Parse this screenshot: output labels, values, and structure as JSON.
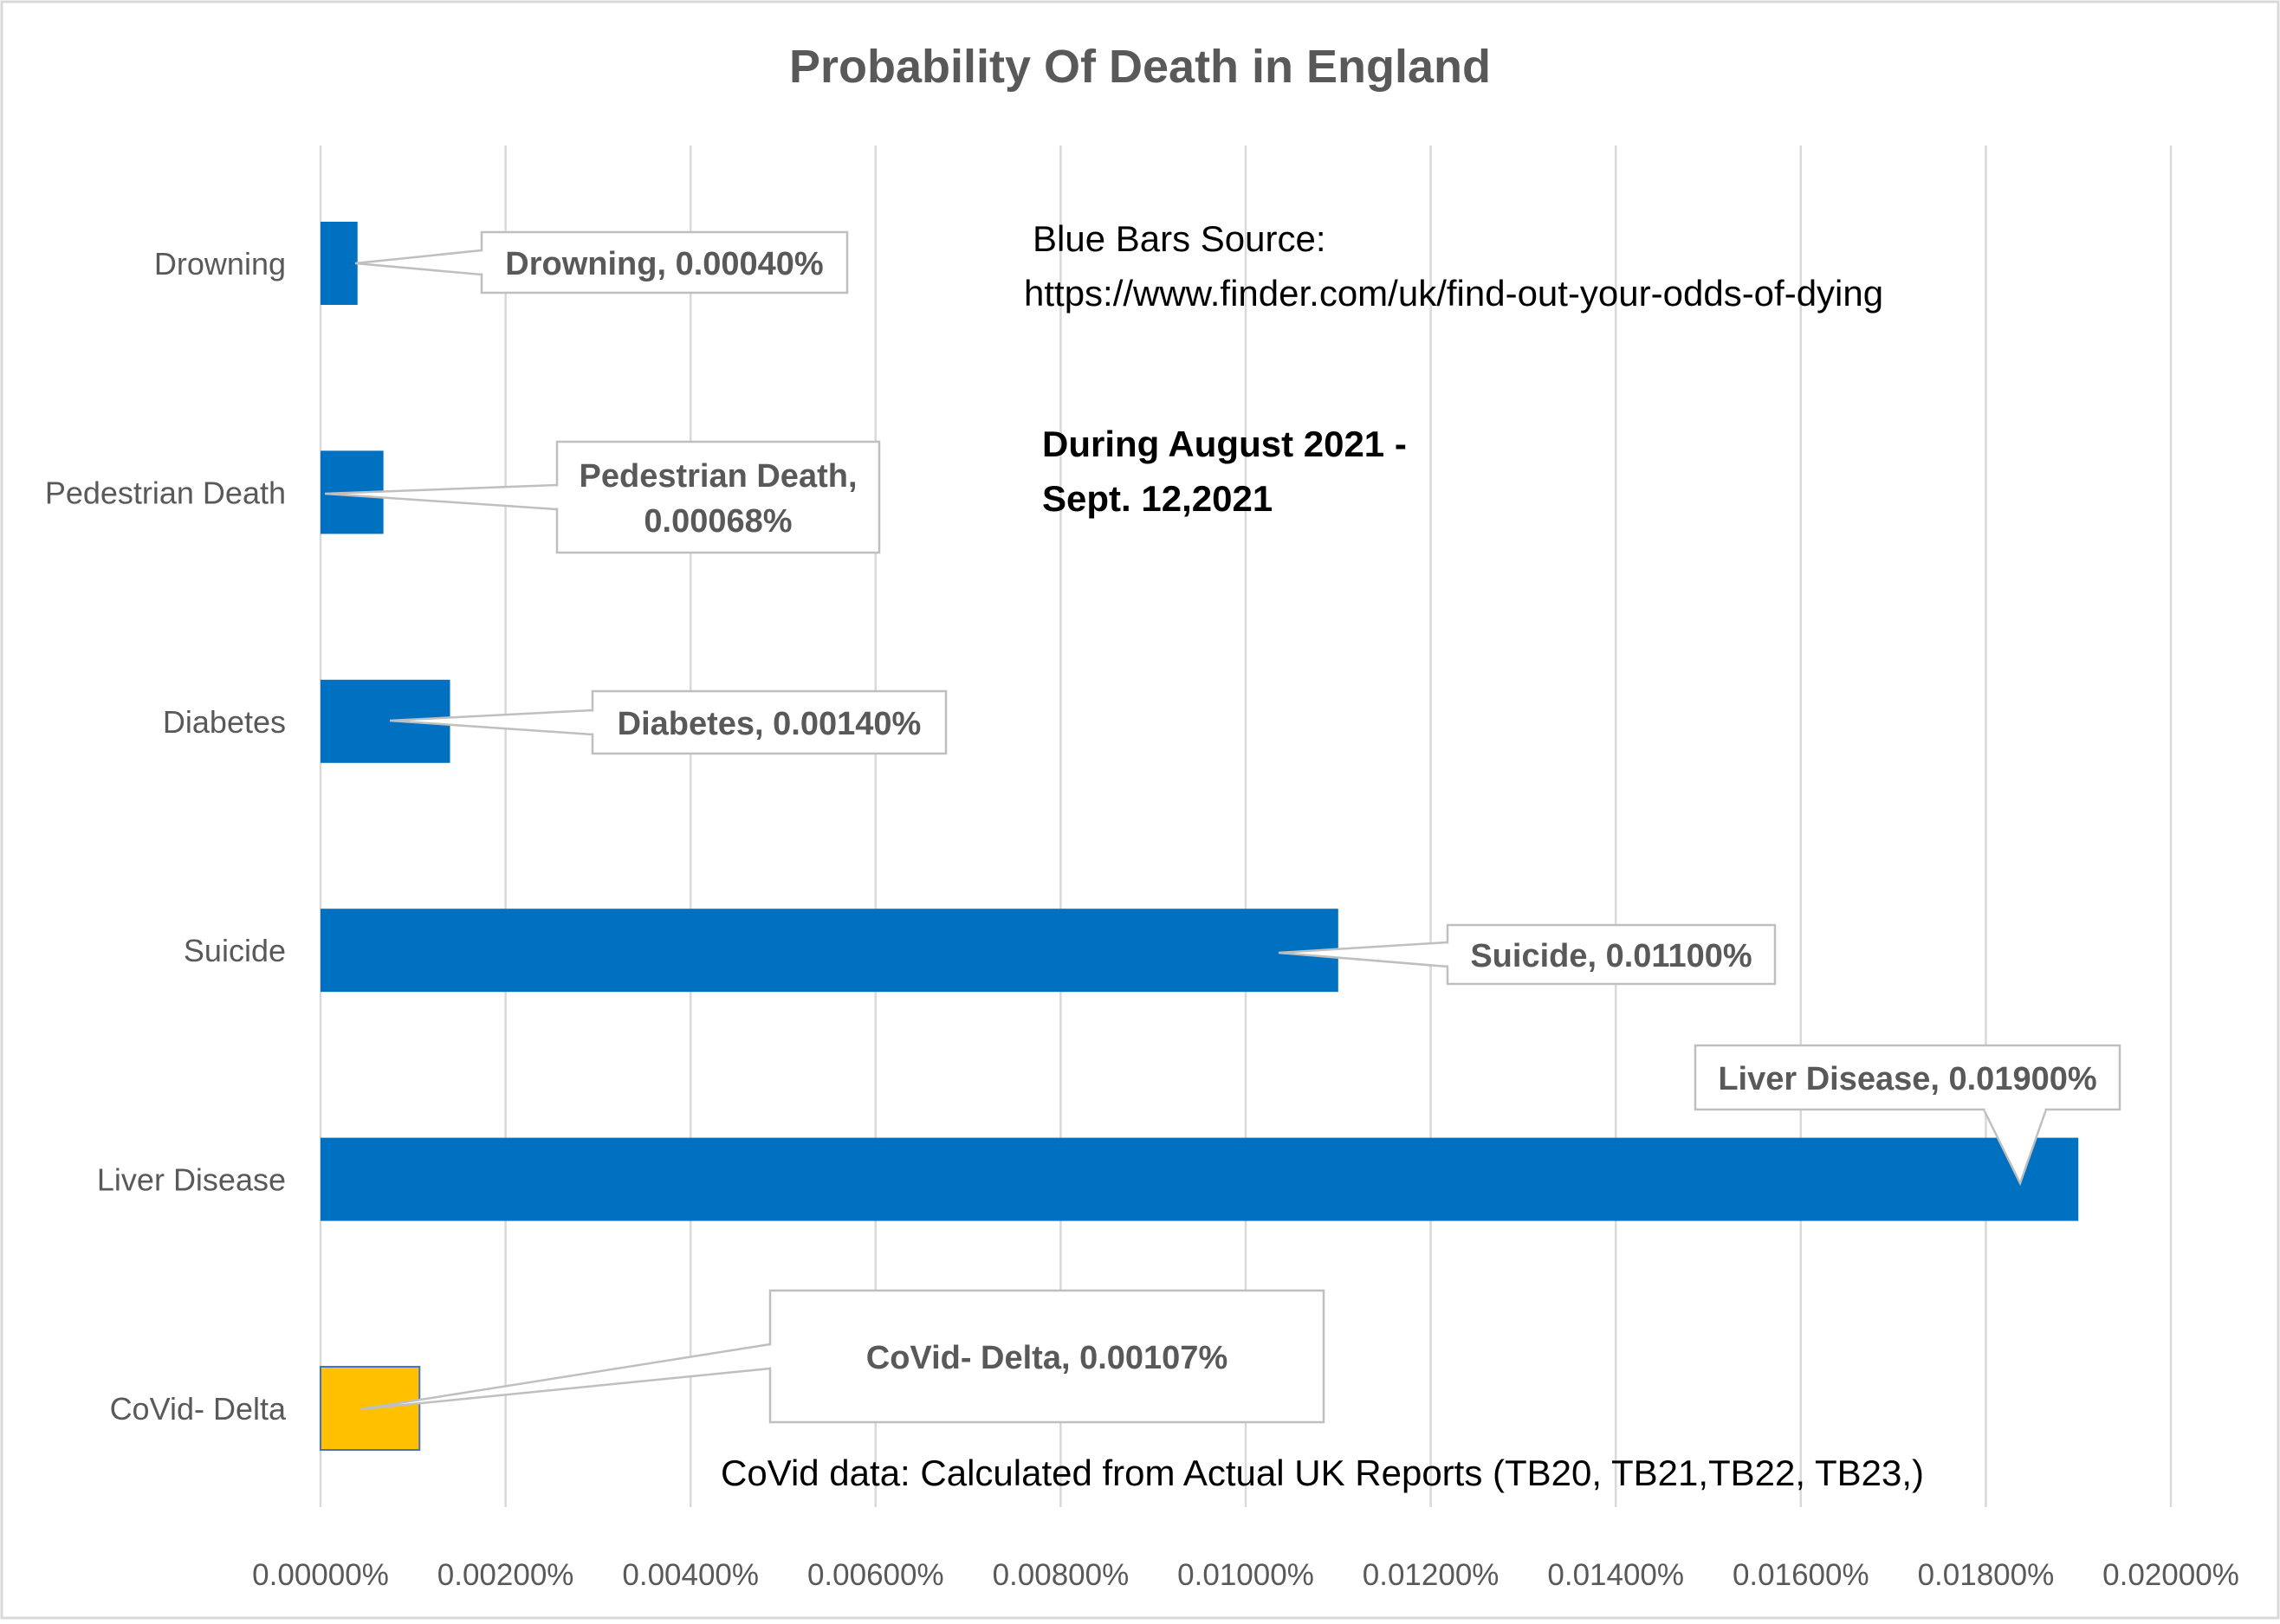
{
  "chart_data": {
    "type": "bar",
    "orientation": "horizontal",
    "title": "Probability Of Death in England",
    "categories": [
      "Drowning",
      "Pedestrian Death",
      "Diabetes",
      "Suicide",
      "Liver Disease",
      "CoVid- Delta"
    ],
    "values": [
      0.0004,
      0.00068,
      0.0014,
      0.011,
      0.019,
      0.00107
    ],
    "value_unit": "%",
    "data_labels": [
      [
        "Drowning, 0.00040%"
      ],
      [
        "Pedestrian Death,",
        "0.00068%"
      ],
      [
        "Diabetes, 0.00140%"
      ],
      [
        "Suicide, 0.01100%"
      ],
      [
        "Liver Disease, 0.01900%"
      ],
      [
        "CoVid- Delta, 0.00107%"
      ]
    ],
    "bar_colors": [
      "#0070C0",
      "#0070C0",
      "#0070C0",
      "#0070C0",
      "#0070C0",
      "#FFC000"
    ],
    "xlim": [
      0,
      0.02
    ],
    "x_ticks": [
      0,
      0.002,
      0.004,
      0.006,
      0.008,
      0.01,
      0.012,
      0.014,
      0.016,
      0.018,
      0.02
    ],
    "x_tick_labels": [
      "0.00000%",
      "0.00200%",
      "0.00400%",
      "0.00600%",
      "0.00800%",
      "0.01000%",
      "0.01200%",
      "0.01400%",
      "0.01600%",
      "0.01800%",
      "0.02000%"
    ],
    "grid": "vertical",
    "xlabel": "",
    "ylabel": "",
    "annotations": {
      "source_line1": "Blue Bars Source:",
      "source_line2": "https://www.finder.com/uk/find-out-your-odds-of-dying",
      "period_line1": "During August 2021 -",
      "period_line2": "Sept. 12,2021",
      "covid_note": "CoVid data: Calculated from Actual UK Reports (TB20, TB21,TB22, TB23,)"
    }
  }
}
